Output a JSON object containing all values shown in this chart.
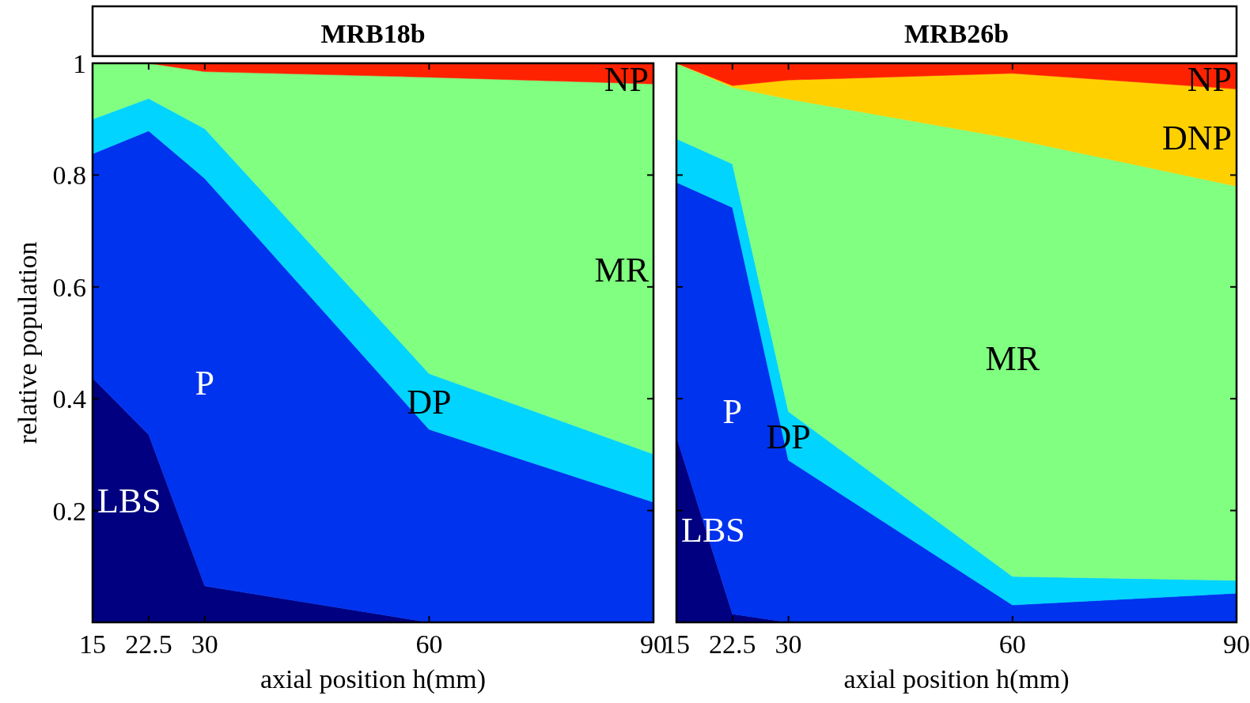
{
  "chart_data": [
    {
      "type": "area",
      "title": "MRB18b",
      "xlabel": "axial position h(mm)",
      "ylabel": "relative population",
      "stacked": true,
      "x": [
        15,
        22.5,
        30,
        60,
        90
      ],
      "xlim": [
        15,
        90
      ],
      "xticks": [
        15,
        22.5,
        30,
        60,
        90
      ],
      "ylim": [
        0,
        1
      ],
      "yticks": [
        0.2,
        0.4,
        0.6,
        0.8,
        1
      ],
      "grid": false,
      "legend": false,
      "series": [
        {
          "name": "LBS",
          "color": "#000080",
          "values": [
            0.437,
            0.336,
            0.065,
            0,
            0
          ]
        },
        {
          "name": "P",
          "color": "#0033ee",
          "values": [
            0.401,
            0.543,
            0.729,
            0.345,
            0.215
          ]
        },
        {
          "name": "DP",
          "color": "#00d4ff",
          "values": [
            0.062,
            0.058,
            0.089,
            0.1,
            0.086
          ]
        },
        {
          "name": "MR",
          "color": "#80ff80",
          "values": [
            0.1,
            0.063,
            0.102,
            0.53,
            0.662
          ]
        },
        {
          "name": "NP",
          "color": "#ff2200",
          "values": [
            0,
            0,
            0.015,
            0.025,
            0.037
          ]
        }
      ]
    },
    {
      "type": "area",
      "title": "MRB26b",
      "xlabel": "axial position h(mm)",
      "stacked": true,
      "tick_labels": "x",
      "x": [
        15,
        22.5,
        30,
        60,
        90
      ],
      "xlim": [
        15,
        90
      ],
      "xticks": [
        15,
        22.5,
        30,
        60,
        90
      ],
      "ylim": [
        0,
        1
      ],
      "yticks": [
        0.2,
        0.4,
        0.6,
        0.8,
        1
      ],
      "grid": false,
      "legend": false,
      "series": [
        {
          "name": "LBS",
          "color": "#000080",
          "values": [
            0.332,
            0.015,
            0,
            0,
            0
          ]
        },
        {
          "name": "P",
          "color": "#0033ee",
          "values": [
            0.455,
            0.727,
            0.29,
            0.031,
            0.052
          ]
        },
        {
          "name": "DP",
          "color": "#00d4ff",
          "values": [
            0.078,
            0.078,
            0.087,
            0.051,
            0.023
          ]
        },
        {
          "name": "MR",
          "color": "#80ff80",
          "values": [
            0.135,
            0.137,
            0.559,
            0.783,
            0.705
          ]
        },
        {
          "name": "DNP",
          "color": "#ffd000",
          "values": [
            0,
            0.003,
            0.034,
            0.117,
            0.174
          ]
        },
        {
          "name": "NP",
          "color": "#ff2200",
          "values": [
            0,
            0.04,
            0.03,
            0.018,
            0.046
          ]
        }
      ]
    }
  ]
}
